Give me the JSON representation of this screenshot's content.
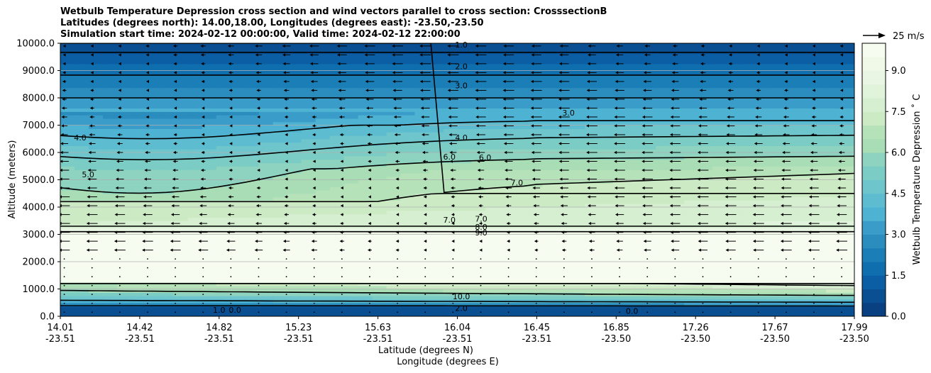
{
  "title_lines": [
    "Wetbulb Temperature Depression cross section and wind vectors parallel to cross section: CrosssectionB",
    "Latitudes (degrees north): 14.00,18.00, Longitudes (degrees east): -23.50,-23.50",
    "Simulation start time: 2024-02-12 00:00:00, Valid time: 2024-02-12 22:00:00"
  ],
  "chart_data": {
    "type": "heatmap",
    "subtype": "filled contour cross section with contour lines and wind vectors",
    "title": "Wetbulb Temperature Depression cross section and wind vectors parallel to cross section: CrosssectionB",
    "ylabel": "Altitude (meters)",
    "xlabel_lat": "Latitude (degrees N)",
    "xlabel_lon": "Longitude (degrees E)",
    "ylim": [
      0,
      10000
    ],
    "xlim": [
      0,
      10
    ],
    "y_ticks": [
      0,
      1000,
      2000,
      3000,
      4000,
      5000,
      6000,
      7000,
      8000,
      9000,
      10000
    ],
    "y_tick_labels": [
      "0.0",
      "1000.0",
      "2000.0",
      "3000.0",
      "4000.0",
      "5000.0",
      "6000.0",
      "7000.0",
      "8000.0",
      "9000.0",
      "10000.0"
    ],
    "x_ticks": [
      {
        "lat": "14.01",
        "lon": "-23.51"
      },
      {
        "lat": "14.42",
        "lon": "-23.51"
      },
      {
        "lat": "14.82",
        "lon": "-23.51"
      },
      {
        "lat": "15.23",
        "lon": "-23.51"
      },
      {
        "lat": "15.63",
        "lon": "-23.51"
      },
      {
        "lat": "16.04",
        "lon": "-23.51"
      },
      {
        "lat": "16.45",
        "lon": "-23.51"
      },
      {
        "lat": "16.85",
        "lon": "-23.50"
      },
      {
        "lat": "17.26",
        "lon": "-23.50"
      },
      {
        "lat": "17.67",
        "lon": "-23.50"
      },
      {
        "lat": "17.99",
        "lon": "-23.50"
      }
    ],
    "grid": "horizontal",
    "colorbar": {
      "label": "Wetbulb Temperature Depression ˚ C",
      "min": 0.0,
      "max": 10.0,
      "levels": 20,
      "ticks": [
        0.0,
        1.5,
        3.0,
        4.5,
        6.0,
        7.5,
        9.0
      ],
      "tick_labels": [
        "0.0",
        "1.5",
        "3.0",
        "4.5",
        "6.0",
        "7.5",
        "9.0"
      ]
    },
    "wind_key": "25 m/s",
    "wind_key_speed": 25,
    "contour_labels": [
      {
        "text": "1.0",
        "x": 5.05,
        "y": 9950
      },
      {
        "text": "2.0",
        "x": 5.05,
        "y": 9150
      },
      {
        "text": "3.0",
        "x": 5.05,
        "y": 8450
      },
      {
        "text": "3.0",
        "x": 6.4,
        "y": 7450
      },
      {
        "text": "4.0",
        "x": 5.05,
        "y": 6550
      },
      {
        "text": "4.0",
        "x": 0.25,
        "y": 6550
      },
      {
        "text": "5.0",
        "x": 0.35,
        "y": 5200
      },
      {
        "text": "6.0",
        "x": 4.9,
        "y": 5850
      },
      {
        "text": "6.0",
        "x": 5.35,
        "y": 5820
      },
      {
        "text": "7.0",
        "x": 5.75,
        "y": 4900
      },
      {
        "text": "7.0",
        "x": 4.9,
        "y": 3530
      },
      {
        "text": "7.0",
        "x": 5.3,
        "y": 3570
      },
      {
        "text": "8.0",
        "x": 5.3,
        "y": 3270
      },
      {
        "text": "9.0",
        "x": 5.3,
        "y": 3060
      },
      {
        "text": "10.0",
        "x": 5.05,
        "y": 730
      },
      {
        "text": "0.0",
        "x": 7.2,
        "y": 200
      },
      {
        "text": "1.0",
        "x": 2.0,
        "y": 230
      },
      {
        "text": "0.0",
        "x": 2.2,
        "y": 230
      },
      {
        "text": "2.0",
        "x": 5.05,
        "y": 300
      }
    ]
  },
  "colors": {
    "colormap": [
      "#084081",
      "#0a4f92",
      "#0b5ea4",
      "#0f6eae",
      "#1b7eb7",
      "#2b8cbe",
      "#3a9cc8",
      "#4eb3d3",
      "#5dbcd0",
      "#6ec5cc",
      "#7bccc4",
      "#8dd3c0",
      "#a8ddb5",
      "#b5e2b8",
      "#ccebc5",
      "#d5efd0",
      "#e0f3db",
      "#e8f6e3",
      "#f0f9e8",
      "#f7fcf0"
    ],
    "contour": "#000000",
    "grid": "#b0b0b0"
  }
}
